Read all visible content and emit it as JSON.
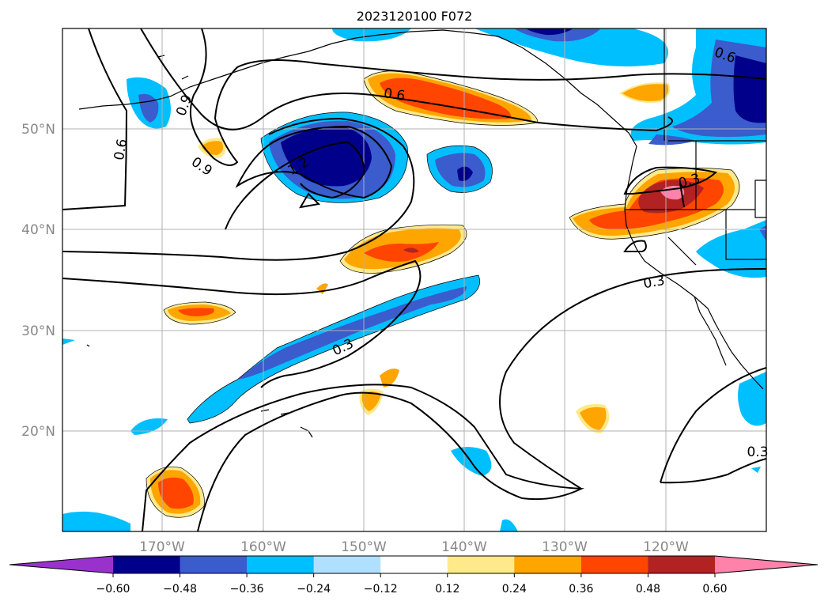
{
  "title": "2023120100 F072",
  "lat_labels": [
    "50°N",
    "40°N",
    "30°N",
    "20°N"
  ],
  "lon_labels": [
    "170°W",
    "160°W",
    "150°W",
    "140°W",
    "130°W",
    "120°W"
  ],
  "colorbar": {
    "ticks": [
      "−0.60",
      "−0.48",
      "−0.36",
      "−0.24",
      "−0.12",
      "0.12",
      "0.24",
      "0.36",
      "0.48",
      "0.60"
    ],
    "colors": [
      "#9932cc",
      "#00008b",
      "#3a5ccc",
      "#00bfff",
      "#b0e0ff",
      "#ffffff",
      "#ffe98a",
      "#ffa500",
      "#ff4500",
      "#b22222",
      "#ff82ab"
    ]
  },
  "contour_labels": [
    "0.6",
    "0.9",
    "0.6",
    "1.2",
    "0.9",
    "0.6",
    "0.3",
    "0.3",
    "0.3",
    "0.6",
    "0.3"
  ]
}
